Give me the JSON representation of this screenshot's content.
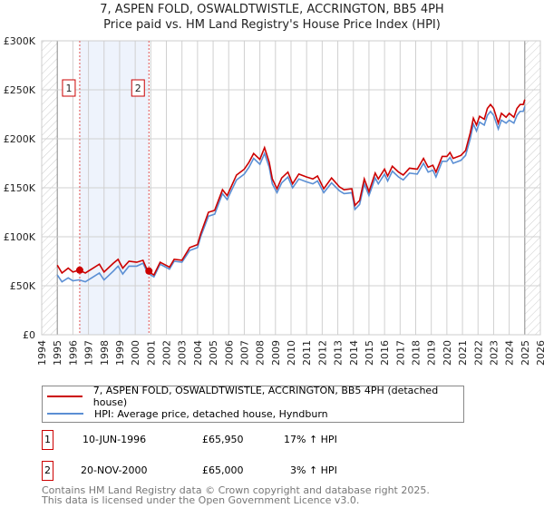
{
  "title": "7, ASPEN FOLD, OSWALDTWISTLE, ACCRINGTON, BB5 4PH",
  "subtitle": "Price paid vs. HM Land Registry's House Price Index (HPI)",
  "chart_data": {
    "type": "line",
    "title": "7, ASPEN FOLD, OSWALDTWISTLE, ACCRINGTON, BB5 4PH",
    "subtitle": "Price paid vs. HM Land Registry's House Price Index (HPI)",
    "xlim": [
      1994,
      2026
    ],
    "ylim": [
      0,
      300000
    ],
    "x_ticks": [
      "1994",
      "1995",
      "1996",
      "1997",
      "1998",
      "1999",
      "2000",
      "2001",
      "2002",
      "2003",
      "2004",
      "2005",
      "2006",
      "2007",
      "2008",
      "2009",
      "2010",
      "2011",
      "2012",
      "2013",
      "2014",
      "2015",
      "2016",
      "2017",
      "2018",
      "2019",
      "2020",
      "2021",
      "2022",
      "2023",
      "2024",
      "2025",
      "2026"
    ],
    "y_ticks": [
      {
        "v": 0,
        "label": "£0"
      },
      {
        "v": 50000,
        "label": "£50K"
      },
      {
        "v": 100000,
        "label": "£100K"
      },
      {
        "v": 150000,
        "label": "£150K"
      },
      {
        "v": 200000,
        "label": "£200K"
      },
      {
        "v": 250000,
        "label": "£250K"
      },
      {
        "v": 300000,
        "label": "£300K"
      }
    ],
    "grid": true,
    "hatched_ranges": [
      [
        1994,
        1995
      ],
      [
        2025,
        2026
      ]
    ],
    "shaded_range": [
      1996.44,
      2000.88
    ],
    "x": [
      1995.0,
      1995.3,
      1995.7,
      1996.0,
      1996.4,
      1996.8,
      1997.3,
      1997.7,
      1998.0,
      1998.6,
      1998.9,
      1999.2,
      1999.6,
      2000.1,
      2000.5,
      2000.8,
      2001.2,
      2001.6,
      2002.2,
      2002.5,
      2003.0,
      2003.5,
      2004.0,
      2004.2,
      2004.7,
      2005.1,
      2005.6,
      2005.9,
      2006.5,
      2007.0,
      2007.3,
      2007.6,
      2008.0,
      2008.3,
      2008.6,
      2008.8,
      2009.1,
      2009.4,
      2009.8,
      2010.1,
      2010.5,
      2011.0,
      2011.4,
      2011.7,
      2012.1,
      2012.6,
      2013.1,
      2013.4,
      2013.9,
      2014.1,
      2014.4,
      2014.7,
      2015.0,
      2015.4,
      2015.6,
      2016.0,
      2016.2,
      2016.5,
      2016.9,
      2017.2,
      2017.6,
      2018.1,
      2018.5,
      2018.8,
      2019.1,
      2019.3,
      2019.7,
      2020.0,
      2020.2,
      2020.4,
      2020.9,
      2021.2,
      2021.5,
      2021.7,
      2021.9,
      2022.1,
      2022.4,
      2022.6,
      2022.8,
      2023.0,
      2023.3,
      2023.5,
      2023.8,
      2024.0,
      2024.3,
      2024.5,
      2024.7,
      2024.9,
      2025.0
    ],
    "series": [
      {
        "name": "7, ASPEN FOLD, OSWALDTWISTLE, ACCRINGTON, BB5 4PH (detached house)",
        "color": "#cc0000",
        "values": [
          71000,
          63000,
          68000,
          64000,
          66000,
          63000,
          68000,
          72000,
          64000,
          73000,
          77000,
          68000,
          75000,
          74000,
          76000,
          65000,
          61000,
          74000,
          69000,
          77000,
          76000,
          89000,
          92000,
          103000,
          125000,
          127000,
          148000,
          142000,
          163000,
          169000,
          176000,
          185000,
          179000,
          191000,
          176000,
          159000,
          149000,
          160000,
          166000,
          154000,
          164000,
          161000,
          159000,
          162000,
          149000,
          160000,
          151000,
          148000,
          149000,
          132000,
          137000,
          159000,
          146000,
          165000,
          159000,
          169000,
          162000,
          172000,
          166000,
          163000,
          170000,
          169000,
          180000,
          171000,
          173000,
          166000,
          182000,
          182000,
          186000,
          180000,
          183000,
          188000,
          206000,
          221000,
          214000,
          223000,
          220000,
          231000,
          235000,
          231000,
          216000,
          226000,
          222000,
          226000,
          222000,
          231000,
          235000,
          235000,
          240000
        ]
      },
      {
        "name": "HPI: Average price, detached house, Hyndburn",
        "color": "#5b8fd4",
        "values": [
          61000,
          54000,
          58000,
          55000,
          56000,
          54000,
          59000,
          63000,
          56000,
          65000,
          70000,
          62000,
          70000,
          70000,
          73000,
          63000,
          59000,
          72000,
          67000,
          75000,
          74000,
          86000,
          89000,
          100000,
          121000,
          123000,
          144000,
          138000,
          158000,
          164000,
          171000,
          180000,
          174000,
          185000,
          171000,
          154000,
          145000,
          155000,
          161000,
          150000,
          159000,
          156000,
          154000,
          157000,
          145000,
          155000,
          147000,
          144000,
          145000,
          128000,
          133000,
          154000,
          142000,
          160000,
          154000,
          164000,
          157000,
          167000,
          161000,
          158000,
          165000,
          164000,
          175000,
          166000,
          168000,
          161000,
          177000,
          177000,
          181000,
          175000,
          178000,
          183000,
          200000,
          215000,
          208000,
          217000,
          214000,
          224000,
          228000,
          224000,
          210000,
          219000,
          216000,
          219000,
          216000,
          224000,
          228000,
          228000,
          233000
        ]
      }
    ],
    "sales": [
      {
        "label": "1",
        "x": 1996.44,
        "value": 65950,
        "date": "10-JUN-1996",
        "price": "£65,950",
        "hpi": "17% ↑ HPI"
      },
      {
        "label": "2",
        "x": 2000.88,
        "value": 65000,
        "date": "20-NOV-2000",
        "price": "£65,000",
        "hpi": "3% ↑ HPI"
      }
    ],
    "legend_position": "below"
  },
  "footer": {
    "line1": "Contains HM Land Registry data © Crown copyright and database right 2025.",
    "line2": "This data is licensed under the Open Government Licence v3.0."
  }
}
